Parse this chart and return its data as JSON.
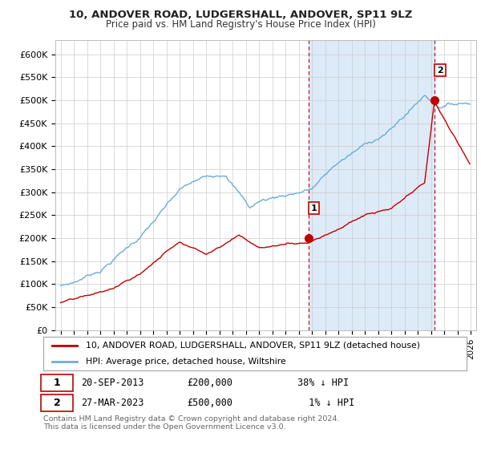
{
  "title": "10, ANDOVER ROAD, LUDGERSHALL, ANDOVER, SP11 9LZ",
  "subtitle": "Price paid vs. HM Land Registry's House Price Index (HPI)",
  "ylabel_ticks": [
    "£0",
    "£50K",
    "£100K",
    "£150K",
    "£200K",
    "£250K",
    "£300K",
    "£350K",
    "£400K",
    "£450K",
    "£500K",
    "£550K",
    "£600K"
  ],
  "ytick_values": [
    0,
    50000,
    100000,
    150000,
    200000,
    250000,
    300000,
    350000,
    400000,
    450000,
    500000,
    550000,
    600000
  ],
  "hpi_color": "#6aaed6",
  "price_color": "#c00000",
  "point1_year": 2013.72,
  "point1_value": 200000,
  "point2_year": 2023.24,
  "point2_value": 500000,
  "legend_property": "10, ANDOVER ROAD, LUDGERSHALL, ANDOVER, SP11 9LZ (detached house)",
  "legend_hpi": "HPI: Average price, detached house, Wiltshire",
  "footer": "Contains HM Land Registry data © Crown copyright and database right 2024.\nThis data is licensed under the Open Government Licence v3.0.",
  "background_color": "#ffffff",
  "grid_color": "#cccccc",
  "shaded_region_color": "#ddeaf7"
}
